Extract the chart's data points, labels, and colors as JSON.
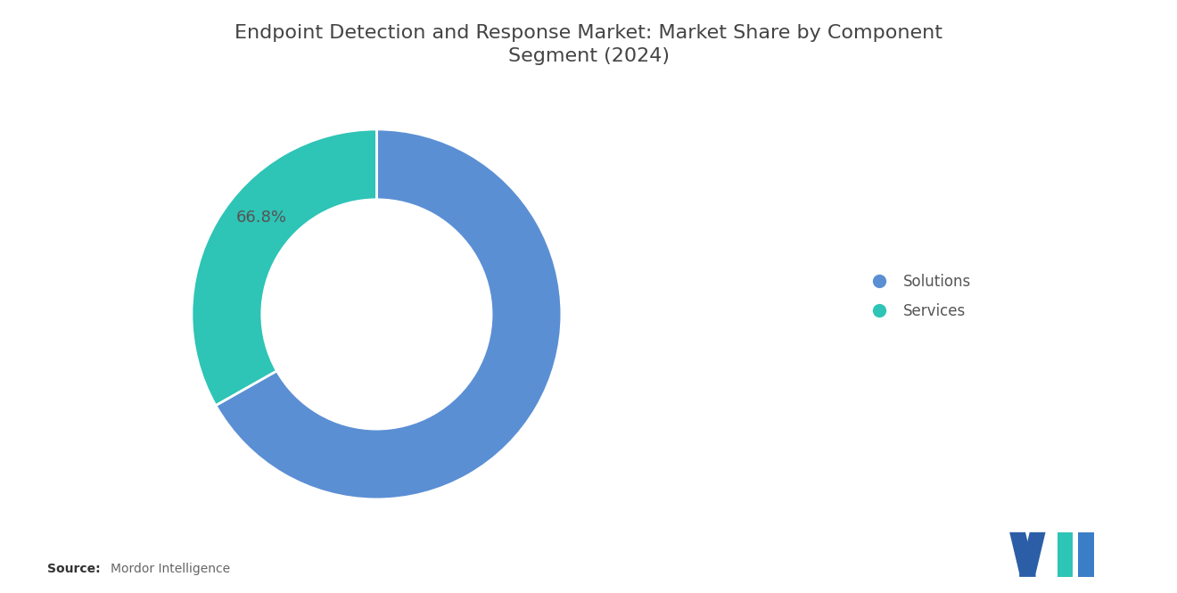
{
  "title": "Endpoint Detection and Response Market: Market Share by Component\nSegment (2024)",
  "segments": [
    "Solutions",
    "Services"
  ],
  "values": [
    66.8,
    33.2
  ],
  "colors": [
    "#5B8FD4",
    "#2EC4B6"
  ],
  "label_text": "66.8%",
  "label_color": "#555555",
  "legend_labels": [
    "Solutions",
    "Services"
  ],
  "source_bold": "Source:",
  "source_text": "Mordor Intelligence",
  "background_color": "#FFFFFF",
  "title_fontsize": 16,
  "label_fontsize": 13,
  "wedge_edge_color": "#FFFFFF",
  "title_color": "#444444",
  "legend_fontsize": 12,
  "source_fontsize": 10
}
